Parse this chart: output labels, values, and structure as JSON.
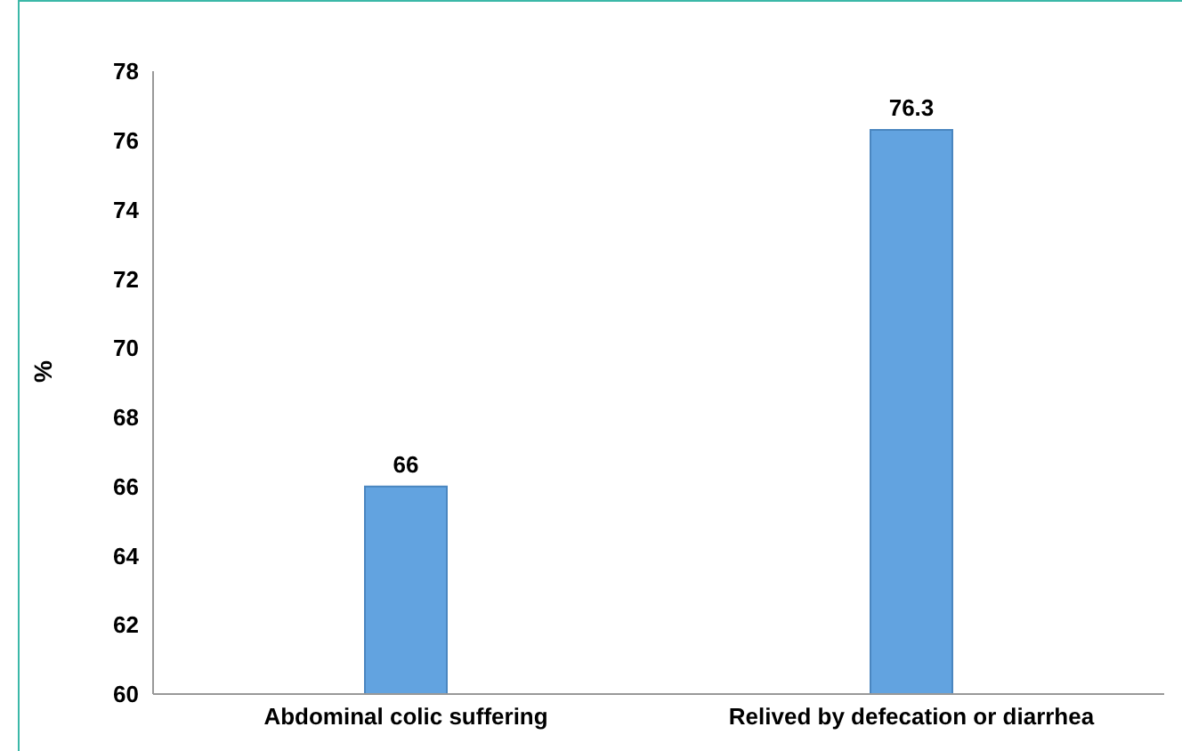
{
  "chart_data": {
    "type": "bar",
    "ylabel": "%",
    "categories": [
      "Abdominal colic suffering",
      "Relived by defecation or diarrhea"
    ],
    "values": [
      66,
      76.3
    ],
    "color": "#62a3e0",
    "ylim": [
      60,
      78
    ],
    "yticks": [
      60,
      62,
      64,
      66,
      68,
      70,
      72,
      74,
      76,
      78
    ],
    "grid": false,
    "data_labels": true
  }
}
